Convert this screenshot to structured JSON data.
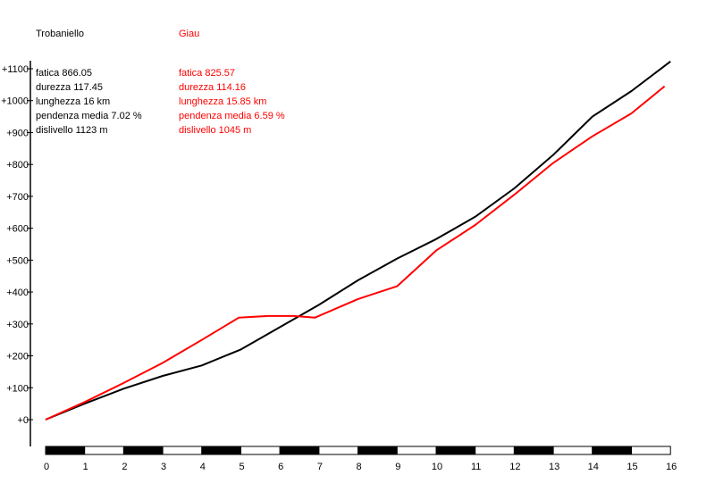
{
  "chart_data": {
    "type": "line",
    "title": "",
    "xlabel": "",
    "ylabel": "",
    "xlim": [
      0,
      16
    ],
    "ylim": [
      -80,
      1130
    ],
    "x_ticks": [
      "0",
      "1",
      "2",
      "3",
      "4",
      "5",
      "6",
      "7",
      "8",
      "9",
      "10",
      "11",
      "12",
      "13",
      "14",
      "15",
      "16"
    ],
    "y_ticks": [
      "+0",
      "+100",
      "+200",
      "+300",
      "+400",
      "+500",
      "+600",
      "+700",
      "+800",
      "+900",
      "+1000",
      "+1100"
    ],
    "grid": false,
    "series": [
      {
        "name": "Trobaniello",
        "color": "#000000",
        "stats": [
          "fatica 866.05",
          "durezza 117.45",
          "lunghezza 16 km",
          "pendenza media 7.02 %",
          "dislivello 1123 m"
        ],
        "x": [
          0,
          1,
          2,
          3,
          4,
          5,
          6,
          7,
          8,
          9,
          10,
          11,
          12,
          13,
          14,
          15,
          16
        ],
        "y": [
          0,
          50,
          97,
          137,
          170,
          220,
          290,
          360,
          437,
          505,
          566,
          636,
          725,
          830,
          950,
          1030,
          1123
        ]
      },
      {
        "name": "Giau",
        "color": "#ff0000",
        "stats": [
          "fatica 825.57",
          "durezza 114.16",
          "lunghezza 15.85 km",
          "pendenza media 6.59 %",
          "dislivello 1045 m"
        ],
        "x": [
          0,
          1,
          2,
          3,
          4,
          4.95,
          5.7,
          6.35,
          6.9,
          8,
          9,
          10,
          11,
          12,
          13,
          14,
          15,
          15.85
        ],
        "y": [
          0,
          55,
          115,
          178,
          250,
          320,
          325,
          325,
          320,
          378,
          418,
          530,
          610,
          705,
          805,
          888,
          960,
          1045
        ]
      }
    ]
  }
}
